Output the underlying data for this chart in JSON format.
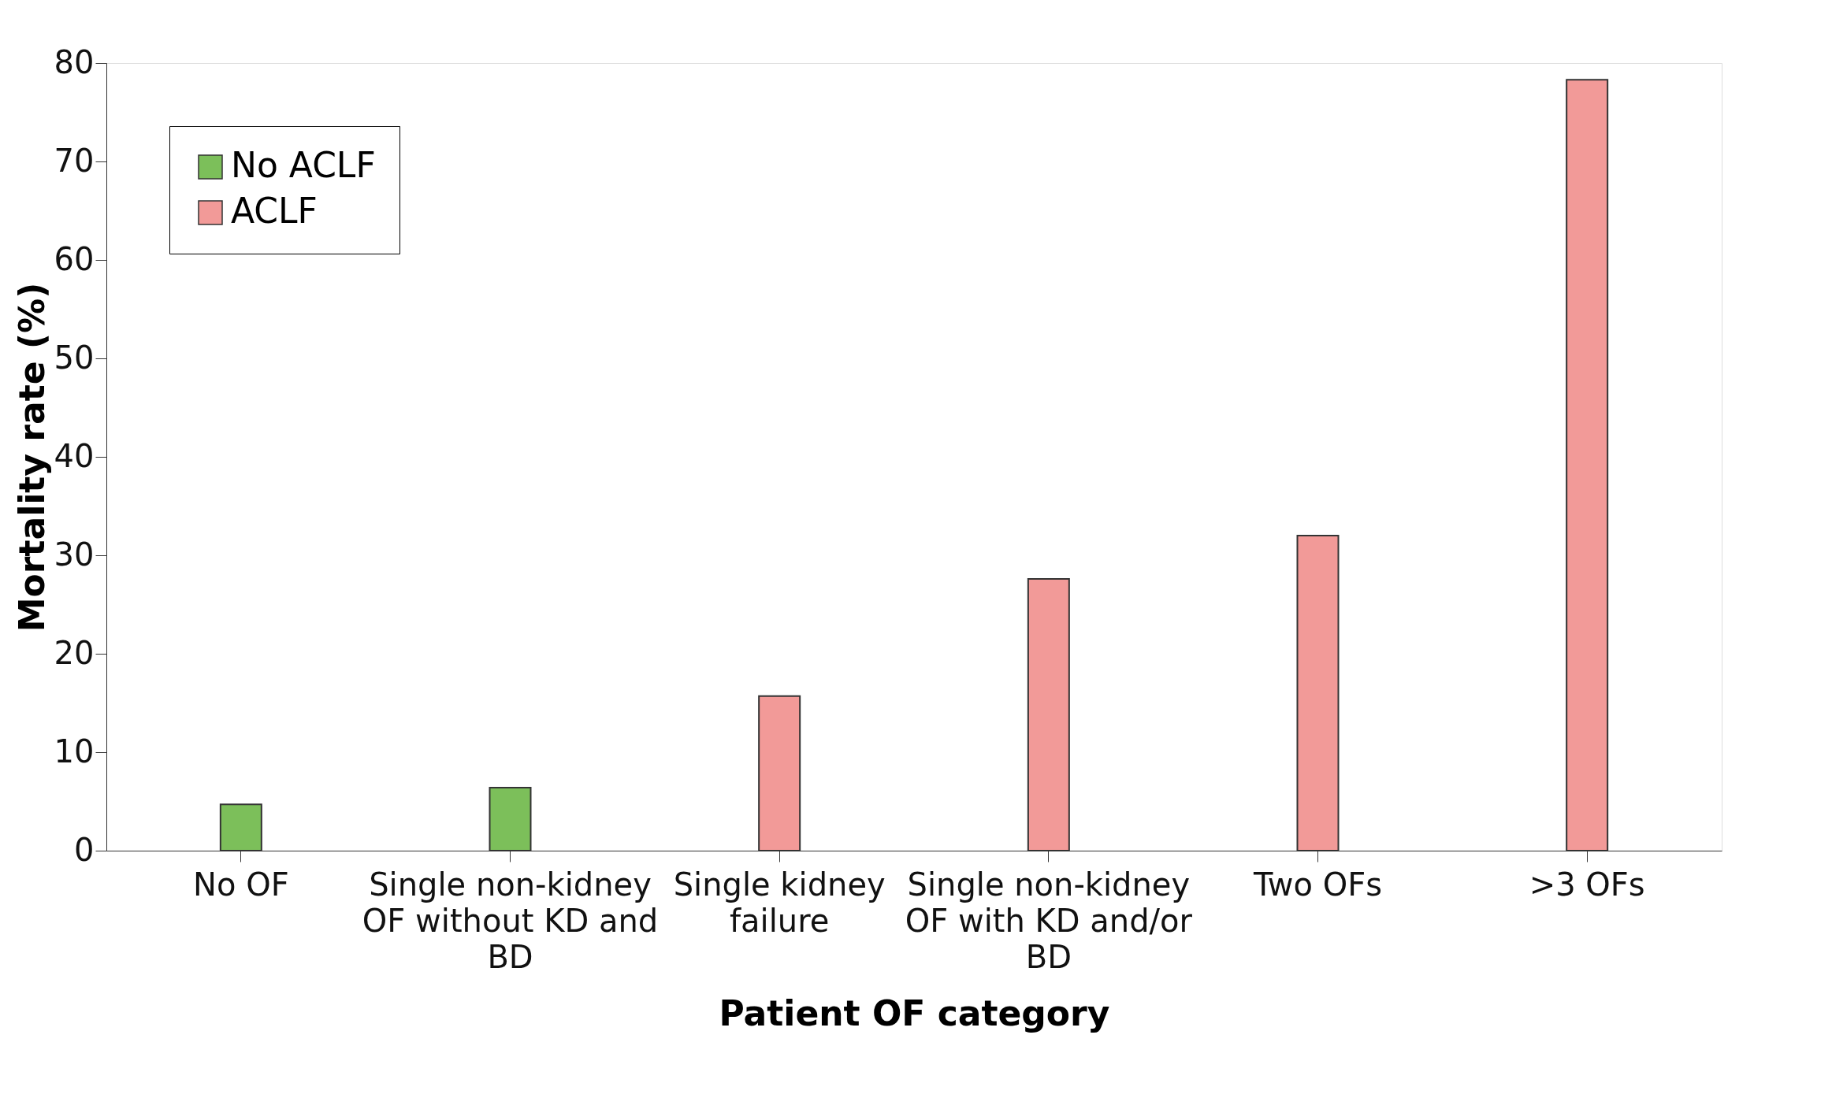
{
  "chart_data": {
    "type": "bar",
    "xlabel": "Patient OF category",
    "ylabel": "Mortality rate (%)",
    "categories": [
      "No OF",
      "Single non-kidney OF without KD and BD",
      "Single kidney failure",
      "Single non-kidney OF with KD and/or BD",
      "Two OFs",
      ">3 OFs"
    ],
    "series": [
      {
        "name": "No ACLF",
        "color": "#7cbf5a",
        "values": [
          4.7,
          6.4,
          null,
          null,
          null,
          null
        ]
      },
      {
        "name": "ACLF",
        "color": "#f29a98",
        "values": [
          null,
          null,
          15.7,
          27.6,
          32.0,
          78.3
        ]
      }
    ],
    "ylim": [
      0,
      80
    ],
    "yticks": [
      0,
      10,
      20,
      30,
      40,
      50,
      60,
      70,
      80
    ],
    "grid": false,
    "legend": "top left"
  }
}
